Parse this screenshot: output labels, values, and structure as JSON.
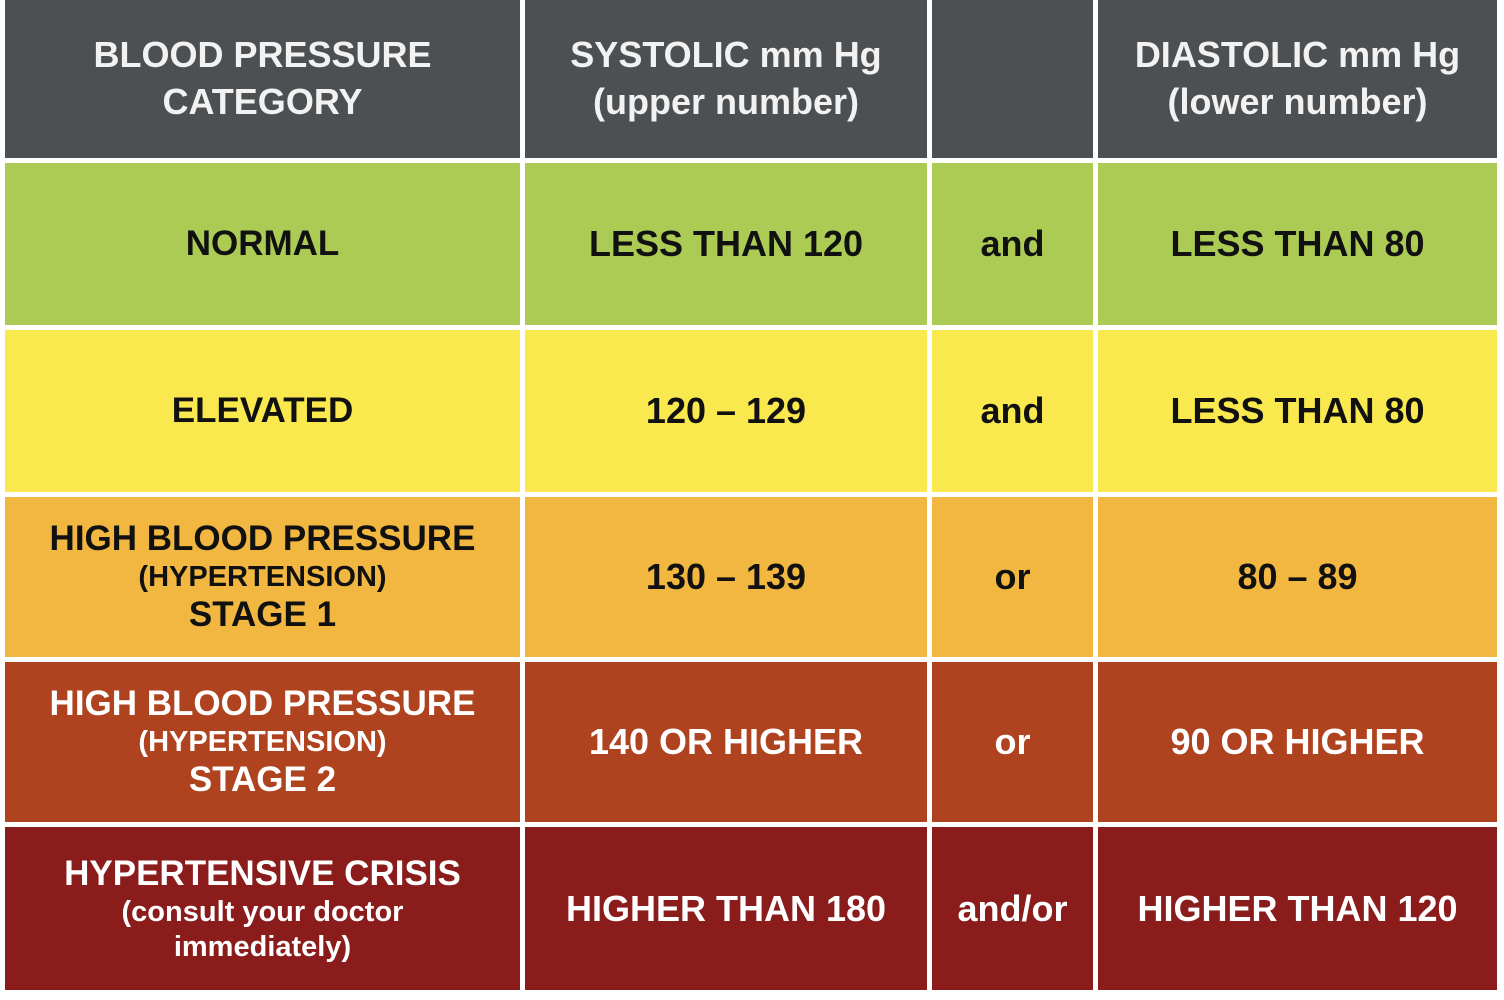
{
  "table": {
    "header": {
      "category": [
        "BLOOD PRESSURE",
        "CATEGORY"
      ],
      "systolic": [
        "SYSTOLIC mm Hg",
        "(upper number)"
      ],
      "diastolic": [
        "DIASTOLIC mm Hg",
        "(lower number)"
      ]
    },
    "rows": [
      {
        "category": [
          "NORMAL"
        ],
        "systolic": "LESS THAN 120",
        "connector": "and",
        "diastolic": "LESS THAN 80"
      },
      {
        "category": [
          "ELEVATED"
        ],
        "systolic": "120 – 129",
        "connector": "and",
        "diastolic": "LESS THAN 80"
      },
      {
        "category": [
          "HIGH BLOOD PRESSURE",
          "(HYPERTENSION)",
          "STAGE 1"
        ],
        "systolic": "130 – 139",
        "connector": "or",
        "diastolic": "80 – 89"
      },
      {
        "category": [
          "HIGH BLOOD PRESSURE",
          "(HYPERTENSION)",
          "STAGE 2"
        ],
        "systolic": "140 OR HIGHER",
        "connector": "or",
        "diastolic": "90 OR HIGHER"
      },
      {
        "category": [
          "HYPERTENSIVE CRISIS",
          "(consult your doctor",
          "immediately)"
        ],
        "systolic": "HIGHER THAN 180",
        "connector": "and/or",
        "diastolic": "HIGHER THAN 120"
      }
    ]
  }
}
